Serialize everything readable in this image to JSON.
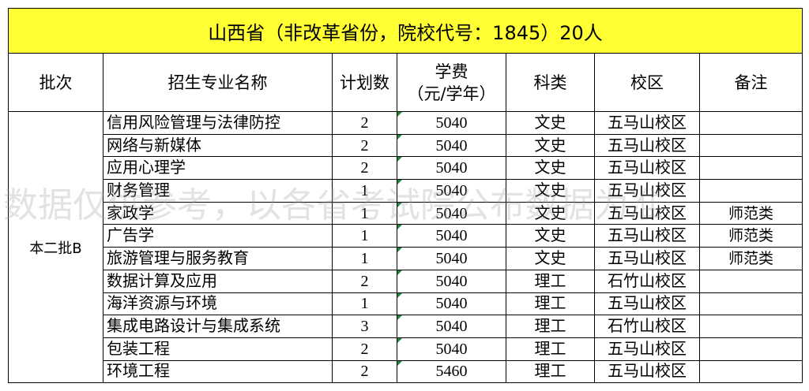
{
  "header": {
    "title": "山西省（非改革省份，院校代号：1845）20人"
  },
  "watermark": "数据仅供参考，以各省考试院公布数据为准",
  "table": {
    "columns": [
      "批次",
      "招生专业名称",
      "计划数",
      "学费\n（元/学年）",
      "科类",
      "校区",
      "备注"
    ],
    "batch": "本二批B",
    "rows": [
      [
        "信用风险管理与法律防控",
        "2",
        "5040",
        "文史",
        "五马山校区",
        ""
      ],
      [
        "网络与新媒体",
        "2",
        "5040",
        "文史",
        "五马山校区",
        ""
      ],
      [
        "应用心理学",
        "2",
        "5040",
        "文史",
        "五马山校区",
        ""
      ],
      [
        "财务管理",
        "1",
        "5040",
        "文史",
        "五马山校区",
        ""
      ],
      [
        "家政学",
        "1",
        "5040",
        "文史",
        "五马山校区",
        "师范类"
      ],
      [
        "广告学",
        "1",
        "5040",
        "文史",
        "五马山校区",
        "师范类"
      ],
      [
        "旅游管理与服务教育",
        "1",
        "5040",
        "文史",
        "五马山校区",
        "师范类"
      ],
      [
        "数据计算及应用",
        "2",
        "5040",
        "理工",
        "石竹山校区",
        ""
      ],
      [
        "海洋资源与环境",
        "1",
        "5040",
        "理工",
        "五马山校区",
        ""
      ],
      [
        "集成电路设计与集成系统",
        "3",
        "5040",
        "理工",
        "石竹山校区",
        ""
      ],
      [
        "包装工程",
        "2",
        "5040",
        "理工",
        "五马山校区",
        ""
      ],
      [
        "环境工程",
        "2",
        "5460",
        "理工",
        "五马山校区",
        ""
      ]
    ]
  }
}
